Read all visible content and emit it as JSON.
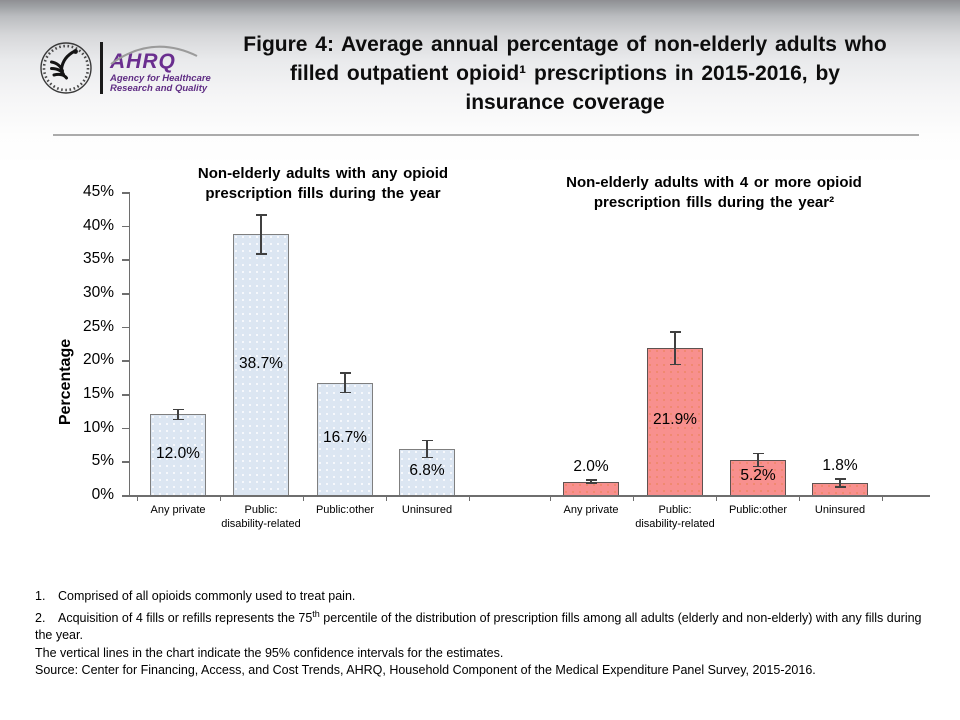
{
  "header": {
    "logo": {
      "hhs_seal": "hhs-eagle-seal",
      "ahrq_acronym": "AHRQ",
      "ahrq_line1": "Agency for Healthcare",
      "ahrq_line2": "Research and Quality"
    },
    "title_lines": [
      "Figure 4: Average annual percentage of non-elderly adults who",
      "filled outpatient opioid¹ prescriptions in 2015-2016, by",
      "insurance coverage"
    ]
  },
  "chart_data": {
    "type": "bar",
    "ylabel": "Percentage",
    "ylim": [
      0,
      45
    ],
    "ytick_step": 5,
    "ytick_suffix": "%",
    "grid": false,
    "error_bar_note": "Vertical lines indicate 95% confidence intervals",
    "groups": [
      {
        "title_lines": [
          "Non-elderly adults with any opioid",
          "prescription fills during the year"
        ],
        "fill": "#dce6f2",
        "dot_color": "rgba(255,255,255,0.9)",
        "border": "#7f7f7f",
        "categories": [
          "Any private",
          "Public:\ndisability-related",
          "Public:other",
          "Uninsured"
        ],
        "values": [
          12.0,
          38.7,
          16.7,
          6.8
        ],
        "labels": [
          "12.0%",
          "38.7%",
          "16.7%",
          "6.8%"
        ],
        "ci_low": [
          11.2,
          35.8,
          15.2,
          5.6
        ],
        "ci_high": [
          12.7,
          41.6,
          18.1,
          8.1
        ],
        "label_placement": [
          "inside",
          "inside",
          "inside",
          "inside"
        ]
      },
      {
        "title_lines": [
          "Non-elderly adults with 4 or more opioid",
          "prescription fills during the year²"
        ],
        "fill": "#f8908e",
        "dot_color": "rgba(226,124,60,0.45)",
        "border": "#5d5250",
        "categories": [
          "Any private",
          "Public:\ndisability-related",
          "Public:other",
          "Uninsured"
        ],
        "values": [
          2.0,
          21.9,
          5.2,
          1.8
        ],
        "labels": [
          "2.0%",
          "21.9%",
          "5.2%",
          "1.8%"
        ],
        "ci_low": [
          1.8,
          19.4,
          4.2,
          1.2
        ],
        "ci_high": [
          2.2,
          24.2,
          6.2,
          2.4
        ],
        "label_placement": [
          "above",
          "inside",
          "inside",
          "above"
        ]
      }
    ]
  },
  "footnotes": {
    "items": [
      {
        "num": "1.",
        "pre": "Comprised of all opioids commonly used to treat pain.",
        "sup": "",
        "post": ""
      },
      {
        "num": "2.",
        "pre": "Acquisition of 4 fills or refills represents the 75",
        "sup": "th",
        "post": " percentile of the distribution of prescription fills among all adults (elderly and non-elderly) with any fills during the year."
      }
    ],
    "ci_note": "The vertical lines in the chart indicate the 95% confidence intervals for the estimates.",
    "source": "Source: Center for Financing, Access, and Cost Trends, AHRQ, Household Component of the Medical Expenditure Panel Survey, 2015-2016."
  },
  "colors": {
    "group1_fill": "#dce6f2",
    "group2_fill": "#f8908e",
    "axis": "#6e6e6e",
    "error_bar": "#404040",
    "ahrq_purple": "#6a2e8f"
  }
}
